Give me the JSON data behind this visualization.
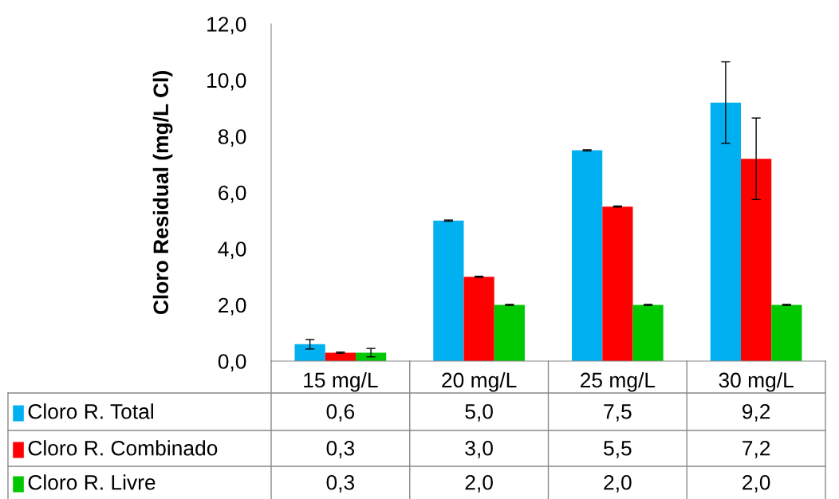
{
  "chart_data": {
    "type": "bar",
    "ylabel": "Cloro Residual (mg/L Cl)",
    "categories": [
      "15 mg/L",
      "20 mg/L",
      "25 mg/L",
      "30 mg/L"
    ],
    "series": [
      {
        "name": "Cloro R. Total",
        "color": "#00b0f0",
        "values": [
          0.6,
          5.0,
          7.5,
          9.2
        ],
        "errors": [
          0.17,
          0.02,
          0.02,
          1.45
        ],
        "value_labels": [
          "0,6",
          "5,0",
          "7,5",
          "9,2"
        ]
      },
      {
        "name": "Cloro R. Combinado",
        "color": "#ff0000",
        "values": [
          0.3,
          3.0,
          5.5,
          7.2
        ],
        "errors": [
          0.02,
          0.02,
          0.02,
          1.45
        ],
        "value_labels": [
          "0,3",
          "3,0",
          "5,5",
          "7,2"
        ]
      },
      {
        "name": "Cloro R. Livre",
        "color": "#00c800",
        "values": [
          0.3,
          2.0,
          2.0,
          2.0
        ],
        "errors": [
          0.15,
          0.02,
          0.02,
          0.02
        ],
        "value_labels": [
          "0,3",
          "2,0",
          "2,0",
          "2,0"
        ]
      }
    ],
    "ylim": [
      0,
      12
    ],
    "yticks": [
      {
        "value": 0,
        "label": "0,0"
      },
      {
        "value": 2,
        "label": "2,0"
      },
      {
        "value": 4,
        "label": "4,0"
      },
      {
        "value": 6,
        "label": "6,0"
      },
      {
        "value": 8,
        "label": "8,0"
      },
      {
        "value": 10,
        "label": "10,0"
      },
      {
        "value": 12,
        "label": "12,0"
      }
    ],
    "grid": false,
    "legend": "bottom"
  }
}
